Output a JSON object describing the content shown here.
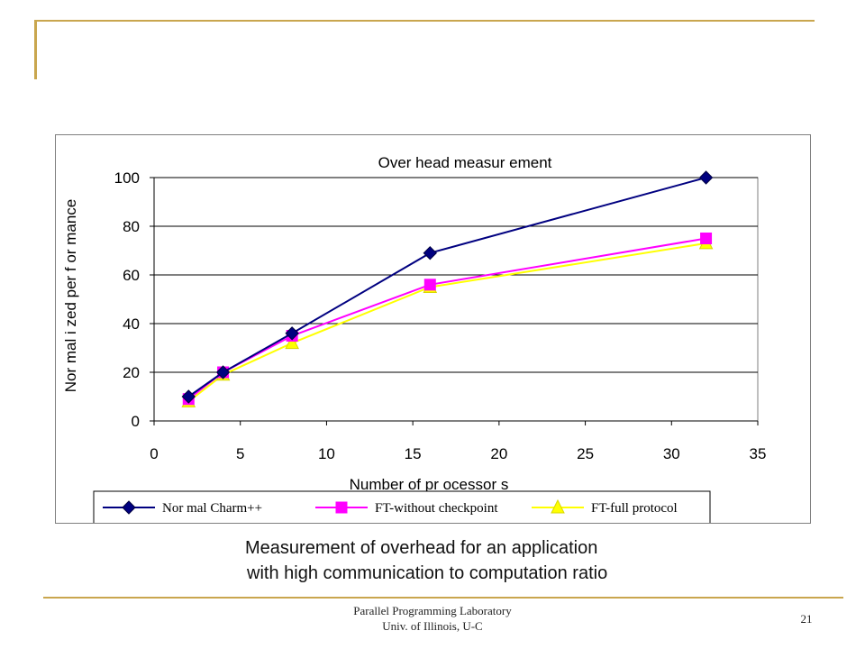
{
  "slide": {
    "caption_line1": "Measurement of overhead for an application",
    "caption_line2": "with high communication to computation ratio",
    "footer_line1": "Parallel Programming Laboratory",
    "footer_line2": "Univ. of Illinois, U-C",
    "page_number": "21",
    "accent_color": "#c9a64e"
  },
  "chart_data": {
    "type": "line",
    "title": "Over head measur ement",
    "xlabel": "Number  of  pr ocessor s",
    "ylabel": "Nor mal i zed per f or mance",
    "xlim": [
      0,
      35
    ],
    "ylim": [
      0,
      100
    ],
    "xticks": [
      "0",
      "5",
      "10",
      "15",
      "20",
      "25",
      "30",
      "35"
    ],
    "yticks": [
      "0",
      "20",
      "40",
      "60",
      "80",
      "100"
    ],
    "grid": "horizontal",
    "legend_position": "bottom",
    "series": [
      {
        "name": "Nor mal Charm++",
        "color": "#000080",
        "marker": "diamond",
        "x": [
          2,
          4,
          8,
          16,
          32
        ],
        "y": [
          10,
          20,
          36,
          69,
          100
        ]
      },
      {
        "name": "FT-without checkpoint",
        "color": "#ff00ff",
        "marker": "square",
        "x": [
          2,
          4,
          8,
          16,
          32
        ],
        "y": [
          9,
          20,
          35,
          56,
          75
        ]
      },
      {
        "name": "FT-full protocol",
        "color": "#ffff00",
        "marker": "triangle",
        "x": [
          2,
          4,
          8,
          16,
          32
        ],
        "y": [
          8,
          19,
          32,
          55,
          73
        ]
      }
    ]
  }
}
